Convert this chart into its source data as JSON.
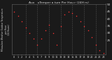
{
  "title": "Aux   uTemper a ture Per Hou r (24H rs)",
  "bg_color": "#1a1a1a",
  "plot_bg": "#1a1a1a",
  "dot_color": "#ff3333",
  "grid_color": "#666666",
  "text_color": "#dddddd",
  "hours": [
    0,
    1,
    2,
    3,
    4,
    5,
    6,
    7,
    8,
    9,
    10,
    11,
    12,
    13,
    14,
    15,
    16,
    17,
    18,
    19,
    20,
    21,
    22,
    23
  ],
  "temps": [
    45,
    42,
    38,
    34,
    30,
    26,
    22,
    26,
    32,
    36,
    30,
    22,
    35,
    43,
    45,
    44,
    42,
    38,
    35,
    32,
    27,
    22,
    18,
    16
  ],
  "ylim_min": 15,
  "ylim_max": 50,
  "yticks": [
    25,
    30,
    35,
    40,
    45,
    50
  ],
  "vline_positions": [
    3,
    6,
    9,
    12,
    15,
    18,
    21
  ],
  "ylabel_left": "Milwaukee Weather Outdoor Temperature\nper Hour\n(24 Hours)"
}
